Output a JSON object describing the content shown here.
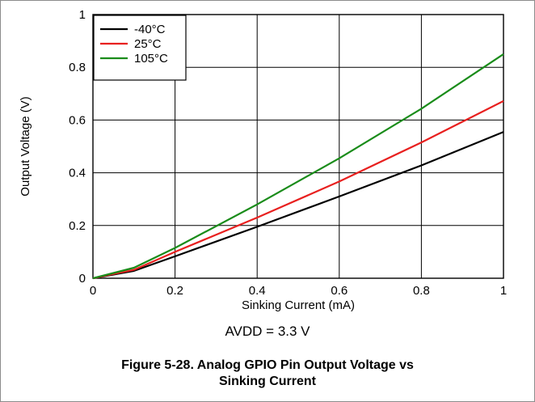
{
  "chart_data": {
    "type": "line",
    "title": "",
    "xlabel": "Sinking Current (mA)",
    "ylabel": "Output Voltage (V)",
    "xlim": [
      0,
      1
    ],
    "ylim": [
      0,
      1
    ],
    "xticks": [
      0,
      0.2,
      0.4,
      0.6,
      0.8,
      1
    ],
    "xtick_labels": [
      "0",
      "0.2",
      "0.4",
      "0.6",
      "0.8",
      "1"
    ],
    "yticks": [
      0,
      0.2,
      0.4,
      0.6,
      0.8,
      1
    ],
    "ytick_labels": [
      "0",
      "0.2",
      "0.4",
      "0.6",
      "0.8",
      "1"
    ],
    "grid": true,
    "legend_position": "top-left",
    "series": [
      {
        "name": "-40°C",
        "color": "#000000",
        "x": [
          0,
          0.1,
          0.2,
          0.4,
          0.6,
          0.8,
          1.0
        ],
        "y": [
          0,
          0.028,
          0.083,
          0.195,
          0.31,
          0.428,
          0.555
        ]
      },
      {
        "name": "25°C",
        "color": "#e8201f",
        "x": [
          0,
          0.1,
          0.2,
          0.4,
          0.6,
          0.8,
          1.0
        ],
        "y": [
          0,
          0.032,
          0.1,
          0.23,
          0.367,
          0.515,
          0.672
        ]
      },
      {
        "name": "105°C",
        "color": "#1a8c1a",
        "x": [
          0,
          0.1,
          0.2,
          0.4,
          0.6,
          0.8,
          1.0
        ],
        "y": [
          0,
          0.04,
          0.115,
          0.28,
          0.455,
          0.643,
          0.85
        ]
      }
    ]
  },
  "condition_text": "AVDD = 3.3 V",
  "figure_title_line1": "Figure 5-28. Analog GPIO Pin Output Voltage vs",
  "figure_title_line2": "Sinking Current"
}
